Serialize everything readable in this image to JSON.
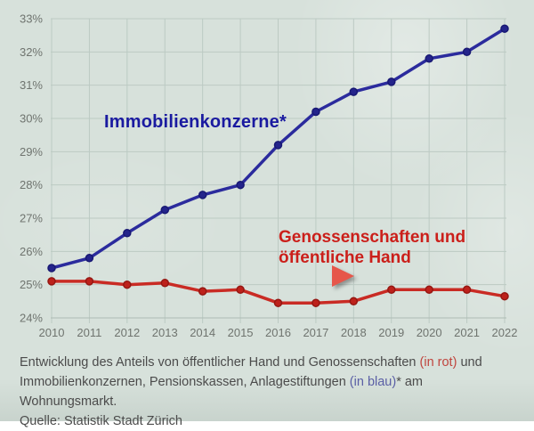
{
  "page": {
    "background_color": "#d7e1db",
    "grid_color": "#bccac3",
    "axis_color": "#aebcb5",
    "tick_text_color": "#6f746f"
  },
  "chart_data": {
    "type": "line",
    "x_labels": [
      "2010",
      "2011",
      "2012",
      "2013",
      "2014",
      "2015",
      "2016",
      "2017",
      "2018",
      "2019",
      "2020",
      "2021",
      "2022"
    ],
    "ylim": [
      24,
      33
    ],
    "y_tick_step": 1,
    "y_tick_suffix": "%",
    "grid": true,
    "legend_position": "direct-labels-on-chart",
    "series": [
      {
        "name": "Immobilienkonzerne*",
        "color": "#2b2b9d",
        "marker_color": "#24248b",
        "marker_ring": "#181873",
        "values": [
          25.5,
          25.8,
          26.55,
          27.25,
          27.7,
          28.0,
          29.2,
          30.2,
          30.8,
          31.1,
          31.8,
          32.0,
          32.7
        ]
      },
      {
        "name": "Genossenschaften und öffentliche Hand",
        "color": "#c92b24",
        "marker_color": "#bd211b",
        "marker_ring": "#951712",
        "values": [
          25.1,
          25.1,
          25.0,
          25.05,
          24.8,
          24.85,
          24.45,
          24.45,
          24.5,
          24.85,
          24.85,
          24.85,
          24.65
        ]
      }
    ],
    "annotations": {
      "blue_label": {
        "text": "Immobilienkonzerne*",
        "color": "#1a1aa0"
      },
      "red_label": {
        "line1": "Genossenschaften und",
        "line2": "öffentliche Hand",
        "color": "#cb1f1a"
      },
      "arrow": {
        "shape": "triangle-right",
        "color": "#e6564a"
      }
    }
  },
  "caption": {
    "text_color": "#4b4b4b",
    "rot_color": "#c0453e",
    "blau_color": "#5a5fa5",
    "line1_part1": "Entwicklung des Anteils von öffentlicher Hand und Genossenschaften ",
    "line1_rot": "(in rot)",
    "line1_part2": " und",
    "line2_part1": "Immobilienkonzernen, Pensionskassen, Anlagestiftungen ",
    "line2_blau": "(in blau)",
    "line2_part2": "* am Wohnungsmarkt.",
    "source": "Quelle: Statistik Stadt Zürich"
  }
}
